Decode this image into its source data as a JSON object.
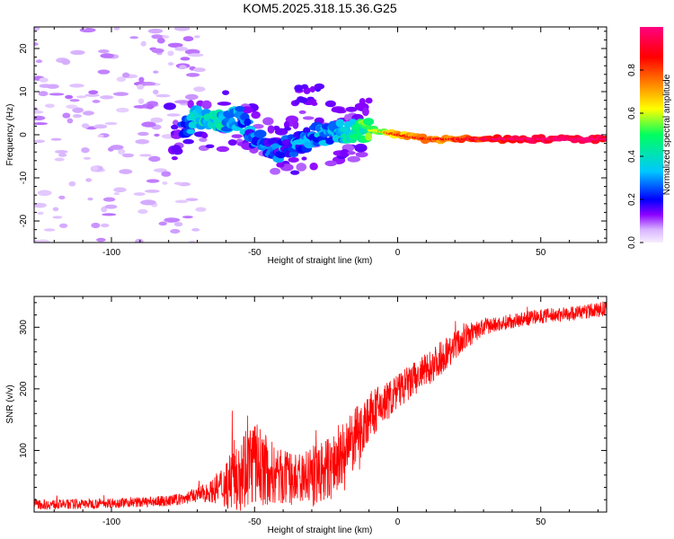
{
  "figure_title": "KOM5.2025.318.15.36.G25",
  "chart_data": [
    {
      "type": "heatmap",
      "title": "KOM5.2025.318.15.36.G25",
      "xlabel": "Height of straight line (km)",
      "ylabel": "Frequency (Hz)",
      "xlim": [
        -127,
        73
      ],
      "ylim": [
        -25,
        25
      ],
      "xticks": [
        -100,
        -50,
        0,
        50
      ],
      "yticks": [
        -20,
        -10,
        0,
        10,
        20
      ],
      "colorbar": {
        "label": "Normalized spectral amplitude",
        "range": [
          0,
          1
        ],
        "ticks": [
          0,
          0.2,
          0.4,
          0.6,
          0.8
        ],
        "tick_labels": [
          "0.0",
          "0.2",
          "0.4",
          "0.6",
          "0.8"
        ],
        "colormap": [
          "#f2e0ff",
          "#8a00ff",
          "#0000ff",
          "#00c8ff",
          "#00ff60",
          "#ffff00",
          "#ff7a00",
          "#ff0000",
          "#ff0080"
        ]
      },
      "ridge": [
        {
          "x": -127,
          "y": 4,
          "a": 0.12
        },
        {
          "x": -85,
          "y": -1,
          "a": 0.2
        },
        {
          "x": -75,
          "y": 1,
          "a": 0.2
        },
        {
          "x": -70,
          "y": 4,
          "a": 0.3
        },
        {
          "x": -60,
          "y": 3,
          "a": 0.3
        },
        {
          "x": -55,
          "y": 4,
          "a": 0.22
        },
        {
          "x": -50,
          "y": -1,
          "a": 0.2
        },
        {
          "x": -42,
          "y": -4,
          "a": 0.18
        },
        {
          "x": -35,
          "y": -2,
          "a": 0.2
        },
        {
          "x": -28,
          "y": 0,
          "a": 0.22
        },
        {
          "x": -15,
          "y": 1,
          "a": 0.35
        },
        {
          "x": -8,
          "y": 1,
          "a": 0.5
        },
        {
          "x": 0,
          "y": 0,
          "a": 0.7
        },
        {
          "x": 10,
          "y": -1,
          "a": 0.72
        },
        {
          "x": 20,
          "y": -1,
          "a": 0.78
        },
        {
          "x": 30,
          "y": -1,
          "a": 0.85
        },
        {
          "x": 45,
          "y": -1,
          "a": 0.92
        },
        {
          "x": 60,
          "y": -1,
          "a": 0.95
        },
        {
          "x": 73,
          "y": -1,
          "a": 0.9
        }
      ]
    },
    {
      "type": "line",
      "xlabel": "Height of straight line (km)",
      "ylabel": "SNR (v/v)",
      "xlim": [
        -127,
        73
      ],
      "ylim": [
        0,
        350
      ],
      "xticks": [
        -100,
        -50,
        0,
        50
      ],
      "yticks": [
        100,
        200,
        300
      ],
      "color": "#ff0000",
      "series": [
        {
          "name": "SNR",
          "x": [
            -127,
            -110,
            -100,
            -90,
            -80,
            -75,
            -70,
            -65,
            -60,
            -55,
            -50,
            -45,
            -40,
            -35,
            -30,
            -25,
            -20,
            -15,
            -10,
            -5,
            0,
            5,
            10,
            15,
            20,
            25,
            30,
            35,
            40,
            50,
            60,
            73
          ],
          "mean": [
            12,
            13,
            15,
            16,
            18,
            22,
            28,
            34,
            45,
            70,
            80,
            65,
            55,
            52,
            58,
            65,
            85,
            118,
            155,
            175,
            195,
            212,
            230,
            250,
            270,
            288,
            300,
            305,
            310,
            318,
            322,
            330
          ],
          "spread": [
            8,
            8,
            8,
            8,
            9,
            10,
            12,
            18,
            40,
            70,
            70,
            55,
            45,
            40,
            50,
            55,
            55,
            50,
            40,
            35,
            30,
            30,
            28,
            28,
            25,
            20,
            15,
            12,
            12,
            12,
            12,
            12
          ]
        }
      ]
    }
  ]
}
